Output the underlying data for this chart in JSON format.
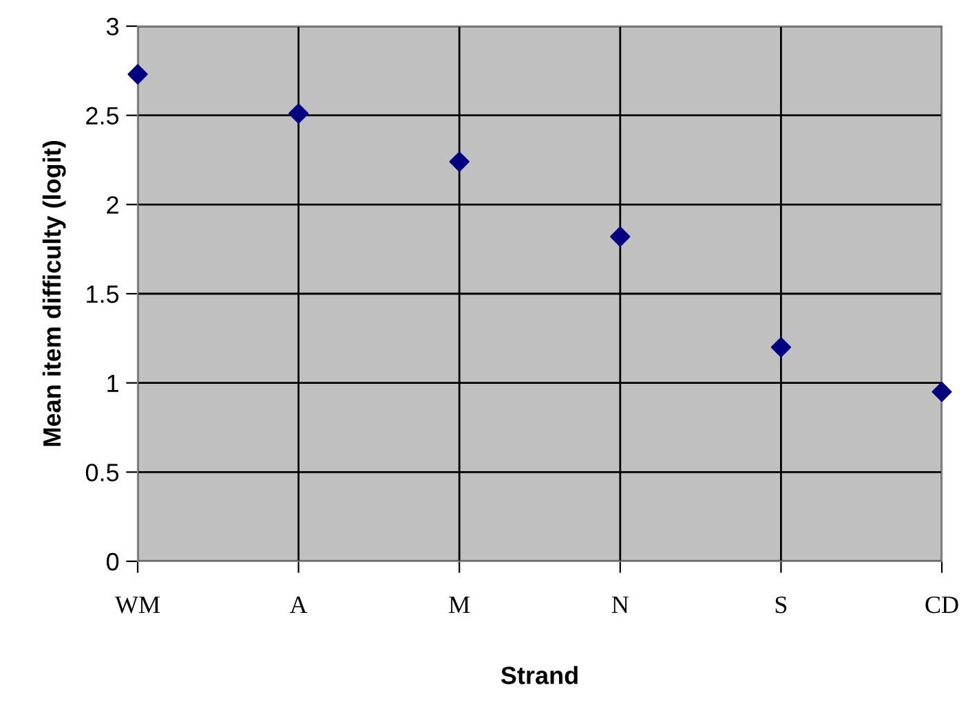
{
  "chart_data": {
    "type": "scatter",
    "xlabel": "Strand",
    "ylabel": "Mean item difficulty (logit)",
    "categories": [
      "WM",
      "A",
      "M",
      "N",
      "S",
      "CD"
    ],
    "series": [
      {
        "color": "#000080",
        "values": [
          2.73,
          2.51,
          2.24,
          1.82,
          1.2,
          0.95
        ]
      }
    ],
    "ylim": [
      0,
      3
    ],
    "yticks": [
      0,
      0.5,
      1,
      1.5,
      2,
      2.5,
      3
    ],
    "grid": true,
    "marker": "diamond",
    "legend": false
  }
}
